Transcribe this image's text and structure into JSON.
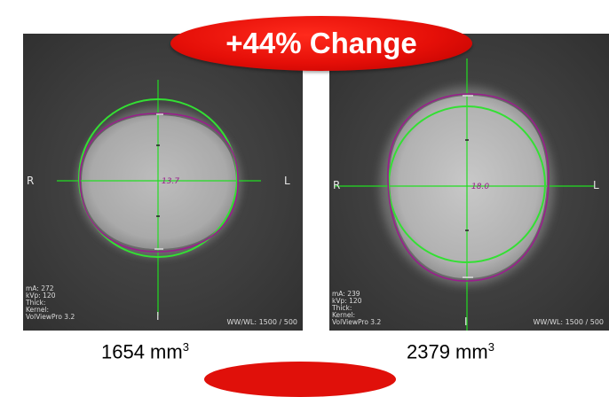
{
  "banner": {
    "text": "+44% Change"
  },
  "scans": {
    "left": {
      "labels": {
        "right": "R",
        "left": "L",
        "inferior": "I"
      },
      "measurement": "13.7",
      "meta": {
        "ma": "mA: 272",
        "kvp": "kVp: 120",
        "thick": "Thick:",
        "kernel": "Kernel:",
        "software": "VolViewPro 3.2"
      },
      "wwwl": "WW/WL: 1500 / 500",
      "volume": {
        "value": "1654 mm",
        "exp": "3"
      }
    },
    "right": {
      "labels": {
        "right": "R",
        "left": "L",
        "inferior": "I"
      },
      "measurement": "18.0",
      "meta": {
        "ma": "mA: 239",
        "kvp": "kVp: 120",
        "thick": "Thick:",
        "kernel": "Kernel:",
        "software": "VolViewPro 3.2"
      },
      "wwwl": "WW/WL: 1500 / 500",
      "volume": {
        "value": "2379 mm",
        "exp": "3"
      }
    }
  },
  "colors": {
    "banner": "#e50f08",
    "crosshair": "#22dd22",
    "contour": "#9a1e8c",
    "fit_circle": "#33e033"
  }
}
